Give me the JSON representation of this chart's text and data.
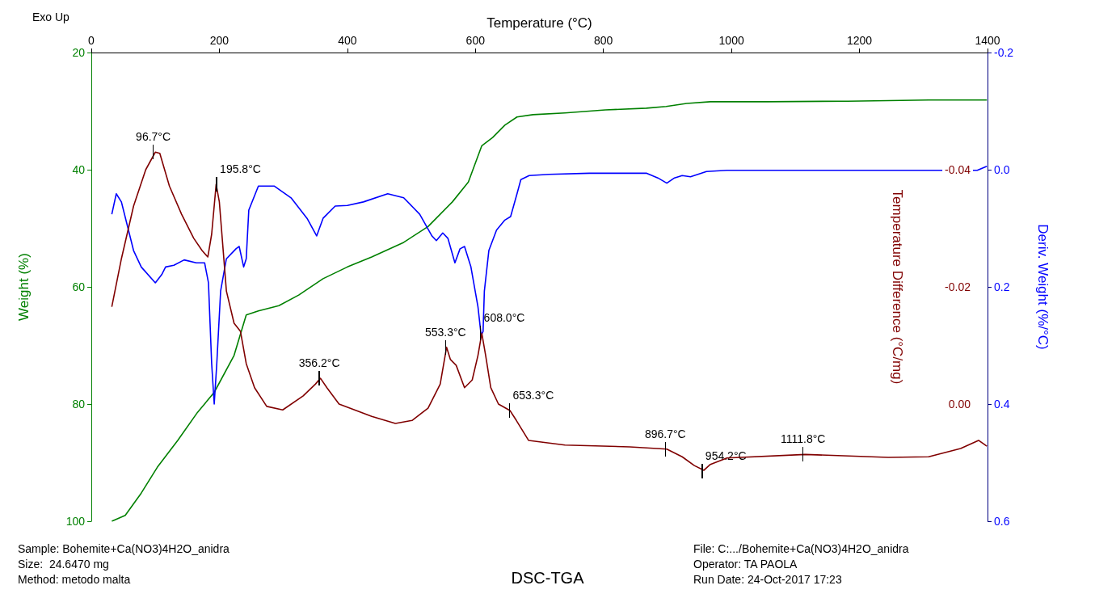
{
  "chart_data": {
    "type": "line",
    "title": "DSC-TGA",
    "xlabel": "Temperature (°C)",
    "ylabel": "Weight (%)",
    "y2label": "Temperature Difference (°C/mg)",
    "y3label": "Deriv. Weight (%/°C)",
    "xlim": [
      0,
      1400
    ],
    "xticks": [
      0,
      200,
      400,
      600,
      800,
      1000,
      1200,
      1400
    ],
    "ylim": [
      100,
      20
    ],
    "yticks": [
      20,
      40,
      60,
      80,
      100
    ],
    "y2lim": [
      0.02,
      -0.06
    ],
    "y2ticks": [
      {
        "value": -0.04,
        "label": "-0.04"
      },
      {
        "value": -0.02,
        "label": "-0.02"
      },
      {
        "value": 0,
        "label": "0.00"
      }
    ],
    "y3lim": [
      0.6,
      -0.2
    ],
    "y3ticks": [
      {
        "value": -0.2,
        "label": "-0.2"
      },
      {
        "value": 0,
        "label": "0.0"
      },
      {
        "value": 0.2,
        "label": "0.2"
      },
      {
        "value": 0.4,
        "label": "0.4"
      },
      {
        "value": 0.6,
        "label": "0.6"
      }
    ],
    "annotations": [
      "Exo Up",
      "Sample: Bohemite+Ca(NO3)4H2O_anidra",
      "Size:  24.6470 mg",
      "Method: metodo malta",
      "File: C:.../Bohemite+Ca(NO3)4H2O_anidra",
      "Operator: TA PAOLA",
      "Run Date: 24-Oct-2017 17:23",
      {
        "text": "96.7°C",
        "x": 96.7,
        "y": 37.0
      },
      {
        "text": "195.8°C",
        "x": 195.8,
        "y": 42.5
      },
      {
        "text": "356.2°C",
        "x": 356.2,
        "y": 75.6
      },
      {
        "text": "553.3°C",
        "x": 553.3,
        "y": 70.3
      },
      {
        "text": "608.0°C",
        "x": 608.0,
        "y": 67.9
      },
      {
        "text": "653.3°C",
        "x": 653.3,
        "y": 81.1
      },
      {
        "text": "896.7°C",
        "x": 896.7,
        "y": 87.7
      },
      {
        "text": "954.2°C",
        "x": 954.2,
        "y": 91.4
      },
      {
        "text": "1111.8°C",
        "x": 1111.8,
        "y": 88.6
      }
    ],
    "series": [
      {
        "type": "line",
        "axis": "y",
        "color": "#008000",
        "x": [
          32,
          53,
          78,
          103,
          135,
          166,
          192,
          223,
          242,
          261,
          293,
          324,
          362,
          400,
          438,
          488,
          526,
          564,
          589,
          610,
          627,
          646,
          665,
          690,
          740,
          803,
          867,
          898,
          930,
          967,
          1056,
          1182,
          1308,
          1399
        ],
        "values": [
          100.0,
          99.0,
          95.2,
          90.8,
          86.2,
          81.4,
          78.0,
          71.7,
          64.8,
          64.1,
          63.2,
          61.4,
          58.6,
          56.6,
          54.9,
          52.4,
          49.7,
          45.5,
          42.1,
          35.9,
          34.5,
          32.4,
          31.0,
          30.6,
          30.3,
          29.8,
          29.5,
          29.2,
          28.7,
          28.4,
          28.4,
          28.3,
          28.1,
          28.1
        ]
      },
      {
        "type": "line",
        "axis": "y3",
        "color": "#0000ff",
        "x": [
          32,
          39,
          47,
          66,
          78,
          100,
          110,
          116,
          129,
          145,
          164,
          177,
          183,
          188,
          192,
          196,
          202,
          211,
          226,
          231,
          238,
          242,
          246,
          261,
          286,
          312,
          337,
          352,
          362,
          381,
          400,
          425,
          463,
          488,
          513,
          532,
          539,
          549,
          557,
          568,
          576,
          583,
          593,
          604,
          609,
          612,
          614,
          621,
          633,
          646,
          655,
          665,
          671,
          684,
          715,
          778,
          867,
          885,
          899,
          911,
          923,
          936,
          961,
          993,
          1119,
          1245,
          1384,
          1399
        ],
        "values": [
          0.076,
          0.041,
          0.055,
          0.138,
          0.166,
          0.193,
          0.179,
          0.166,
          0.163,
          0.154,
          0.159,
          0.159,
          0.193,
          0.331,
          0.4,
          0.331,
          0.207,
          0.152,
          0.135,
          0.131,
          0.166,
          0.152,
          0.069,
          0.028,
          0.028,
          0.048,
          0.083,
          0.113,
          0.083,
          0.062,
          0.061,
          0.055,
          0.041,
          0.048,
          0.076,
          0.113,
          0.121,
          0.108,
          0.117,
          0.159,
          0.135,
          0.131,
          0.166,
          0.234,
          0.283,
          0.276,
          0.207,
          0.138,
          0.103,
          0.086,
          0.08,
          0.041,
          0.017,
          0.01,
          0.008,
          0.006,
          0.006,
          0.014,
          0.023,
          0.014,
          0.01,
          0.012,
          0.003,
          0.001,
          0.001,
          0.001,
          0.001,
          -0.006
        ]
      },
      {
        "type": "line",
        "axis": "y2",
        "color": "#800000",
        "x": [
          32,
          47,
          66,
          85,
          100,
          107,
          122,
          141,
          160,
          173,
          182,
          188,
          195,
          200,
          205,
          211,
          223,
          233,
          242,
          255,
          274,
          299,
          331,
          350,
          358,
          368,
          387,
          438,
          475,
          501,
          526,
          545,
          555,
          561,
          570,
          583,
          595,
          604,
          610,
          616,
          624,
          636,
          654,
          664,
          683,
          740,
          841,
          899,
          923,
          942,
          957,
          967,
          993,
          1115,
          1245,
          1308,
          1358,
          1386,
          1399
        ],
        "values": [
          -0.0166,
          -0.0248,
          -0.0338,
          -0.04,
          -0.043,
          -0.0428,
          -0.0372,
          -0.0324,
          -0.0283,
          -0.0262,
          -0.0251,
          -0.029,
          -0.0375,
          -0.0345,
          -0.0276,
          -0.0193,
          -0.0138,
          -0.0124,
          -0.0069,
          -0.0028,
          0.0004,
          0.001,
          -0.0014,
          -0.0034,
          -0.0044,
          -0.0028,
          0.0,
          0.0021,
          0.0033,
          0.0028,
          0.0007,
          -0.0034,
          -0.0097,
          -0.0076,
          -0.0066,
          -0.0028,
          -0.0041,
          -0.0083,
          -0.0121,
          -0.0083,
          -0.0028,
          0.0,
          0.0011,
          0.0028,
          0.0062,
          0.007,
          0.0073,
          0.0077,
          0.009,
          0.0105,
          0.0113,
          0.0103,
          0.0092,
          0.0086,
          0.0091,
          0.009,
          0.0076,
          0.0062,
          0.0072
        ]
      }
    ]
  }
}
